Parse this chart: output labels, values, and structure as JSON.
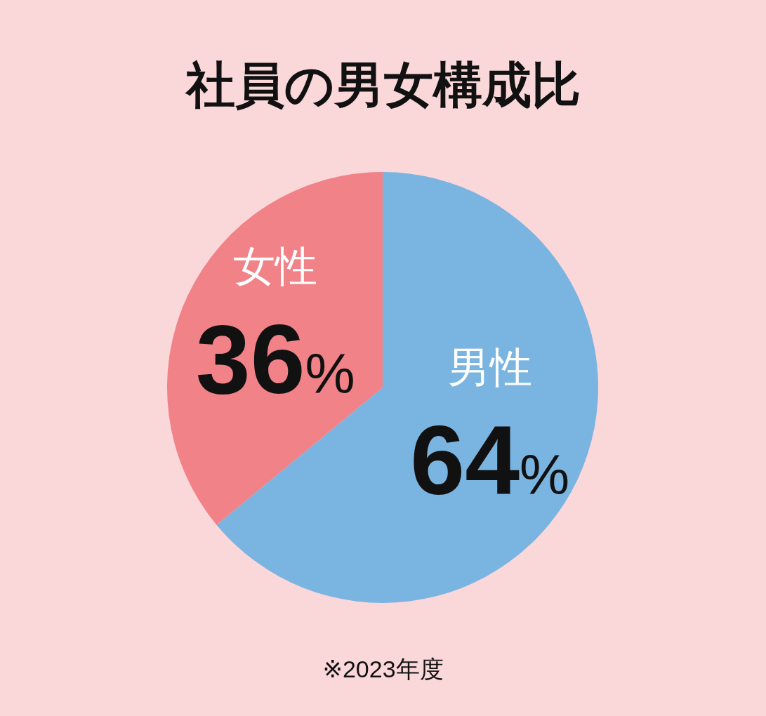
{
  "chart_data": {
    "type": "pie",
    "title": "社員の男女構成比",
    "categories": [
      "男性",
      "女性"
    ],
    "values": [
      64,
      36
    ],
    "colors": [
      "#7ab4e1",
      "#f08288"
    ],
    "value_labels": [
      "64%",
      "36%"
    ],
    "annotations": [
      "※2023年度"
    ]
  }
}
